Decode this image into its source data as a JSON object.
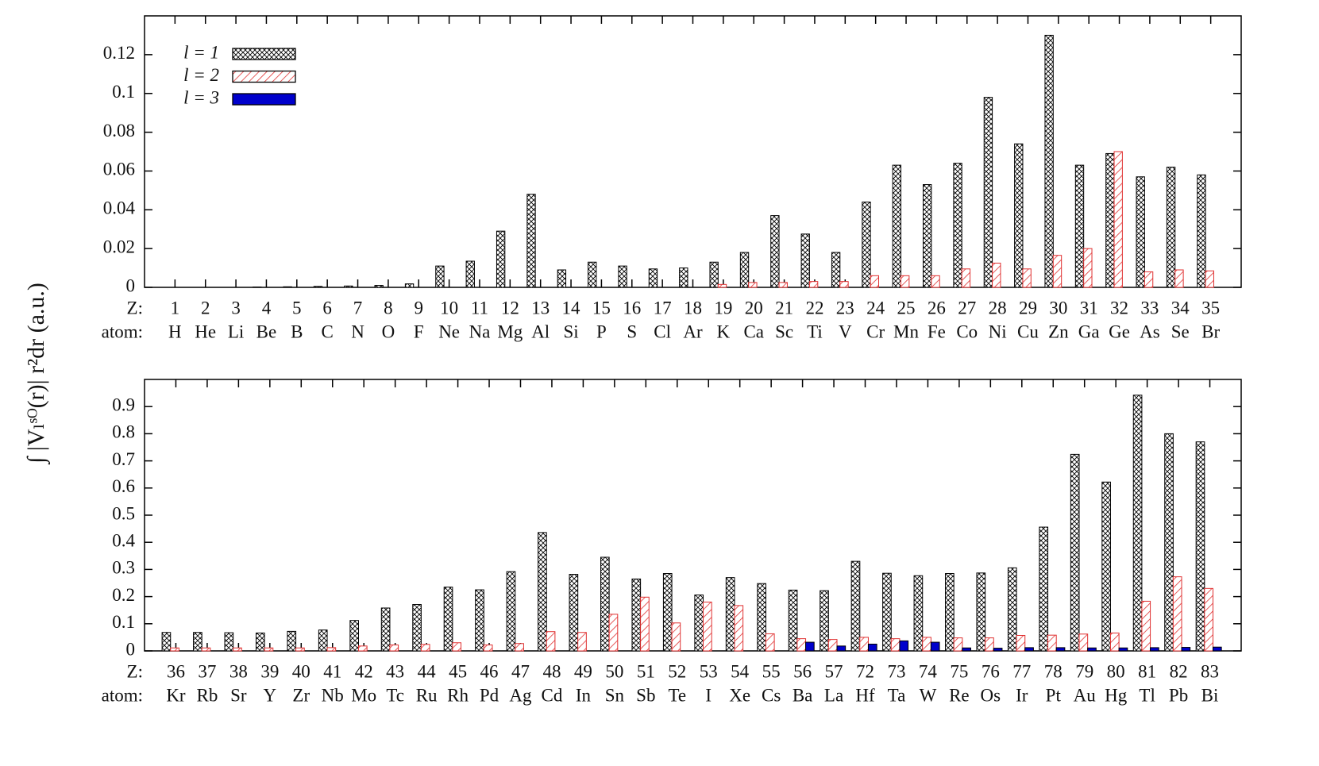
{
  "chart_data": [
    {
      "type": "bar",
      "ylabel": "∫ |Vₗˢᴼ(r)| r²dr (a.u.)",
      "z_heading": "Z:",
      "atom_heading": "atom:",
      "categories": [
        "1",
        "2",
        "3",
        "4",
        "5",
        "6",
        "7",
        "8",
        "9",
        "10",
        "11",
        "12",
        "13",
        "14",
        "15",
        "16",
        "17",
        "18",
        "19",
        "20",
        "21",
        "22",
        "23",
        "24",
        "25",
        "26",
        "27",
        "28",
        "29",
        "30",
        "31",
        "32",
        "33",
        "34",
        "35"
      ],
      "atoms": [
        "H",
        "He",
        "Li",
        "Be",
        "B",
        "C",
        "N",
        "O",
        "F",
        "Ne",
        "Na",
        "Mg",
        "Al",
        "Si",
        "P",
        "S",
        "Cl",
        "Ar",
        "K",
        "Ca",
        "Sc",
        "Ti",
        "V",
        "Cr",
        "Mn",
        "Fe",
        "Co",
        "Ni",
        "Cu",
        "Zn",
        "Ga",
        "Ge",
        "As",
        "Se",
        "Br"
      ],
      "ylim": [
        0,
        0.14
      ],
      "yticks": [
        0,
        0.02,
        0.04,
        0.06,
        0.08,
        0.1,
        0.12
      ],
      "legend": "upper left",
      "series": [
        {
          "name": "l = 1",
          "color": "#000000",
          "pattern": "crosshatch",
          "values": [
            0,
            0,
            0,
            0.0002,
            0.0003,
            0.0005,
            0.0007,
            0.001,
            0.0018,
            0.011,
            0.0135,
            0.029,
            0.048,
            0.009,
            0.013,
            0.011,
            0.0095,
            0.01,
            0.013,
            0.018,
            0.037,
            0.0275,
            0.018,
            0.044,
            0.063,
            0.053,
            0.064,
            0.098,
            0.074,
            0.13,
            0.063,
            0.069,
            0.057,
            0.062,
            0.058
          ]
        },
        {
          "name": "l = 2",
          "color": "#e03030",
          "pattern": "hatch",
          "values": [
            0,
            0,
            0,
            0,
            0,
            0,
            0,
            0,
            0,
            0,
            0,
            0,
            0,
            0,
            0,
            0,
            0,
            0,
            0.0015,
            0.0025,
            0.0025,
            0.003,
            0.003,
            0.006,
            0.006,
            0.006,
            0.0095,
            0.0125,
            0.0095,
            0.0165,
            0.02,
            0.07,
            0.008,
            0.009,
            0.0085
          ]
        },
        {
          "name": "l = 3",
          "color": "#0000cc",
          "pattern": "solid",
          "values": [
            0,
            0,
            0,
            0,
            0,
            0,
            0,
            0,
            0,
            0,
            0,
            0,
            0,
            0,
            0,
            0,
            0,
            0,
            0,
            0,
            0,
            0,
            0,
            0,
            0,
            0,
            0,
            0,
            0,
            0,
            0,
            0,
            0,
            0,
            0
          ]
        }
      ]
    },
    {
      "type": "bar",
      "z_heading": "Z:",
      "atom_heading": "atom:",
      "categories": [
        "36",
        "37",
        "38",
        "39",
        "40",
        "41",
        "42",
        "43",
        "44",
        "45",
        "46",
        "47",
        "48",
        "49",
        "50",
        "51",
        "52",
        "53",
        "54",
        "55",
        "56",
        "57",
        "72",
        "73",
        "74",
        "75",
        "76",
        "77",
        "78",
        "79",
        "80",
        "81",
        "82",
        "83"
      ],
      "atoms": [
        "Kr",
        "Rb",
        "Sr",
        "Y",
        "Zr",
        "Nb",
        "Mo",
        "Tc",
        "Ru",
        "Rh",
        "Pd",
        "Ag",
        "Cd",
        "In",
        "Sn",
        "Sb",
        "Te",
        "I",
        "Xe",
        "Cs",
        "Ba",
        "La",
        "Hf",
        "Ta",
        "W",
        "Re",
        "Os",
        "Ir",
        "Pt",
        "Au",
        "Hg",
        "Tl",
        "Pb",
        "Bi"
      ],
      "ylim": [
        0,
        1
      ],
      "yticks": [
        0,
        0.1,
        0.2,
        0.3,
        0.4,
        0.5,
        0.6,
        0.7,
        0.8,
        0.9
      ],
      "series": [
        {
          "color": "#000000",
          "pattern": "crosshatch",
          "values": [
            0.068,
            0.068,
            0.067,
            0.066,
            0.072,
            0.077,
            0.112,
            0.158,
            0.171,
            0.235,
            0.225,
            0.292,
            0.436,
            0.282,
            0.345,
            0.265,
            0.285,
            0.206,
            0.27,
            0.248,
            0.224,
            0.222,
            0.33,
            0.286,
            0.277,
            0.285,
            0.287,
            0.306,
            0.456,
            0.724,
            0.622,
            0.942,
            0.8,
            0.77
          ]
        },
        {
          "color": "#e03030",
          "pattern": "hatch",
          "values": [
            0.011,
            0.011,
            0.011,
            0.011,
            0.011,
            0.012,
            0.018,
            0.022,
            0.024,
            0.03,
            0.022,
            0.027,
            0.071,
            0.068,
            0.135,
            0.198,
            0.103,
            0.18,
            0.167,
            0.063,
            0.045,
            0.042,
            0.05,
            0.045,
            0.05,
            0.048,
            0.048,
            0.057,
            0.058,
            0.062,
            0.066,
            0.183,
            0.273,
            0.23
          ]
        },
        {
          "color": "#0000cc",
          "pattern": "solid",
          "values": [
            0,
            0,
            0,
            0,
            0,
            0,
            0,
            0,
            0,
            0,
            0,
            0,
            0,
            0,
            0,
            0,
            0,
            0,
            0,
            0,
            0.032,
            0.018,
            0.025,
            0.037,
            0.032,
            0.011,
            0.01,
            0.012,
            0.012,
            0.011,
            0.011,
            0.012,
            0.013,
            0.014
          ]
        }
      ]
    }
  ]
}
